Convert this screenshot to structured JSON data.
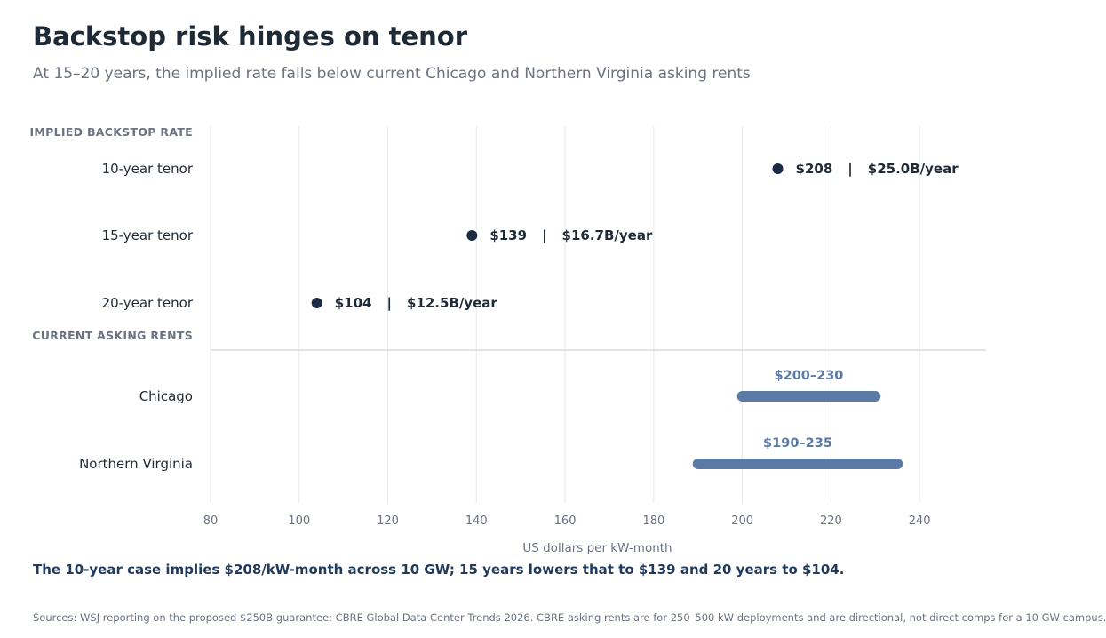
{
  "header": {
    "title": "Backstop risk hinges on tenor",
    "subtitle": "At 15–20 years, the implied rate falls below current Chicago and Northern Virginia asking rents"
  },
  "chart_data": {
    "type": "dot-range",
    "xlabel": "US dollars per kW-month",
    "xlim": [
      80,
      255
    ],
    "xticks": [
      80,
      100,
      120,
      140,
      160,
      180,
      200,
      220,
      240
    ],
    "grid": true,
    "sections": [
      {
        "label": "IMPLIED BACKSTOP RATE",
        "kind": "points",
        "rows": [
          {
            "label": "10-year tenor",
            "value": 208,
            "rate_text": "$208",
            "separator": "|",
            "annual_text": "$25.0B/year"
          },
          {
            "label": "15-year tenor",
            "value": 139,
            "rate_text": "$139",
            "separator": "|",
            "annual_text": "$16.7B/year"
          },
          {
            "label": "20-year tenor",
            "value": 104,
            "rate_text": "$104",
            "separator": "|",
            "annual_text": "$12.5B/year"
          }
        ]
      },
      {
        "label": "CURRENT ASKING RENTS",
        "kind": "ranges",
        "rows": [
          {
            "label": "Chicago",
            "low": 200,
            "high": 230,
            "range_text": "$200–230"
          },
          {
            "label": "Northern Virginia",
            "low": 190,
            "high": 235,
            "range_text": "$190–235"
          }
        ]
      }
    ],
    "colors": {
      "point": "#1c2b45",
      "range": "#5b7aa6",
      "grid": "#e5e7eb",
      "divider": "#d1d5db"
    }
  },
  "takeaway": "The 10-year case implies $208/kW-month across 10 GW; 15 years lowers that to $139 and 20 years to $104.",
  "sources": "Sources: WSJ reporting on the proposed $250B guarantee; CBRE Global Data Center Trends 2026. CBRE asking rents are for 250–500 kW deployments and are directional, not direct comps for a 10 GW campus."
}
